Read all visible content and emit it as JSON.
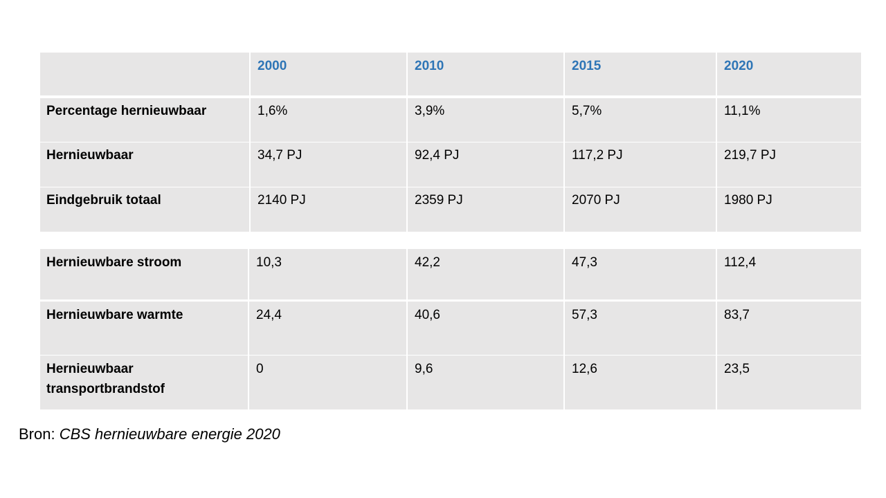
{
  "header": {
    "corner": "",
    "years": [
      "2000",
      "2010",
      "2015",
      "2020"
    ]
  },
  "group1": [
    {
      "label": "Percentage hernieuwbaar",
      "values": [
        "1,6%",
        "3,9%",
        "5,7%",
        "11,1%"
      ]
    },
    {
      "label": "Hernieuwbaar",
      "values": [
        "34,7 PJ",
        "92,4 PJ",
        "117,2 PJ",
        "219,7 PJ"
      ]
    },
    {
      "label": "Eindgebruik totaal",
      "values": [
        "2140 PJ",
        "2359 PJ",
        "2070 PJ",
        "1980 PJ"
      ]
    }
  ],
  "group2": [
    {
      "label": "Hernieuwbare stroom",
      "values": [
        "10,3",
        "42,2",
        "47,3",
        "112,4"
      ]
    },
    {
      "label": "Hernieuwbare warmte",
      "values": [
        "24,4",
        "40,6",
        "57,3",
        "83,7"
      ]
    },
    {
      "label": "Hernieuwbaar transportbrandstof",
      "values": [
        "0",
        "9,6",
        "12,6",
        "23,5"
      ]
    }
  ],
  "source": {
    "prefix": "Bron: ",
    "title": "CBS hernieuwbare energie 2020"
  },
  "colors": {
    "header_text": "#2e75b6",
    "cell_background": "#e7e6e6"
  }
}
